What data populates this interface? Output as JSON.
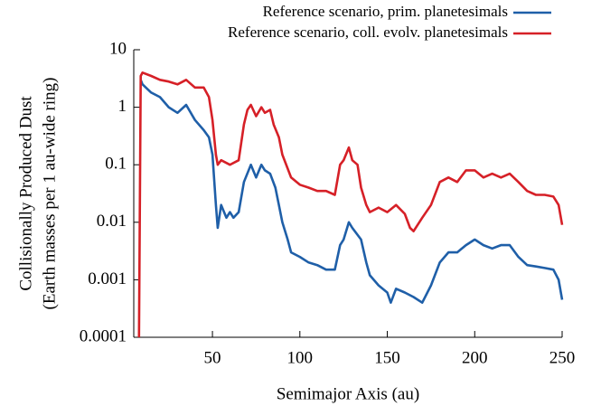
{
  "chart_data": {
    "type": "line",
    "xlabel": "Semimajor Axis (au)",
    "ylabel": [
      "Collisionally Produced Dust",
      "(Earth masses per 1 au-wide ring)"
    ],
    "xlim": [
      5,
      250
    ],
    "xticks": [
      50,
      100,
      150,
      200,
      250
    ],
    "ylim": [
      0.0001,
      10
    ],
    "yticks": [
      10,
      1,
      0.1,
      0.01,
      0.001,
      0.0001
    ],
    "yscale": "log",
    "legend": "top-right",
    "series": [
      {
        "name": "Reference scenario, prim. planetesimals",
        "color": "#1f5fa8",
        "x": [
          9,
          10,
          15,
          20,
          25,
          30,
          35,
          40,
          45,
          48,
          50,
          52,
          53,
          55,
          58,
          60,
          62,
          65,
          68,
          72,
          75,
          78,
          80,
          83,
          86,
          88,
          90,
          93,
          95,
          100,
          105,
          110,
          115,
          120,
          123,
          125,
          128,
          130,
          135,
          138,
          140,
          145,
          150,
          152,
          155,
          160,
          165,
          170,
          175,
          180,
          185,
          190,
          195,
          200,
          205,
          210,
          215,
          220,
          225,
          230,
          235,
          240,
          245,
          248,
          250
        ],
        "values": [
          3,
          2.5,
          1.8,
          1.5,
          1,
          0.8,
          1.1,
          0.6,
          0.4,
          0.3,
          0.15,
          0.02,
          0.008,
          0.02,
          0.012,
          0.015,
          0.012,
          0.015,
          0.05,
          0.1,
          0.06,
          0.1,
          0.08,
          0.07,
          0.04,
          0.02,
          0.01,
          0.005,
          0.003,
          0.0025,
          0.002,
          0.0018,
          0.0015,
          0.0015,
          0.004,
          0.005,
          0.01,
          0.008,
          0.005,
          0.002,
          0.0012,
          0.0008,
          0.0006,
          0.0004,
          0.0007,
          0.0006,
          0.0005,
          0.0004,
          0.0008,
          0.002,
          0.003,
          0.003,
          0.004,
          0.005,
          0.004,
          0.0035,
          0.004,
          0.004,
          0.0025,
          0.0018,
          0.0017,
          0.0016,
          0.0015,
          0.001,
          0.00045
        ]
      },
      {
        "name": "Reference scenario, coll. evolv. planetesimals",
        "color": "#d62027",
        "x": [
          8,
          9,
          10,
          15,
          20,
          25,
          30,
          35,
          40,
          45,
          48,
          50,
          52,
          53,
          55,
          60,
          65,
          68,
          70,
          72,
          75,
          78,
          80,
          83,
          85,
          88,
          90,
          95,
          100,
          105,
          110,
          115,
          120,
          123,
          125,
          128,
          130,
          133,
          135,
          138,
          140,
          145,
          150,
          155,
          160,
          163,
          165,
          170,
          175,
          180,
          185,
          190,
          195,
          200,
          205,
          210,
          215,
          220,
          225,
          230,
          235,
          240,
          245,
          248,
          250
        ],
        "values": [
          0.0001,
          3.5,
          4,
          3.5,
          3,
          2.8,
          2.5,
          3,
          2.2,
          2.2,
          1.5,
          0.6,
          0.15,
          0.1,
          0.12,
          0.1,
          0.12,
          0.5,
          0.9,
          1.1,
          0.7,
          1,
          0.8,
          0.9,
          0.5,
          0.3,
          0.15,
          0.06,
          0.045,
          0.04,
          0.035,
          0.035,
          0.03,
          0.1,
          0.12,
          0.2,
          0.12,
          0.1,
          0.04,
          0.02,
          0.015,
          0.018,
          0.015,
          0.02,
          0.014,
          0.008,
          0.007,
          0.012,
          0.02,
          0.05,
          0.06,
          0.05,
          0.08,
          0.08,
          0.06,
          0.07,
          0.06,
          0.07,
          0.05,
          0.035,
          0.03,
          0.03,
          0.028,
          0.02,
          0.009
        ]
      }
    ]
  }
}
